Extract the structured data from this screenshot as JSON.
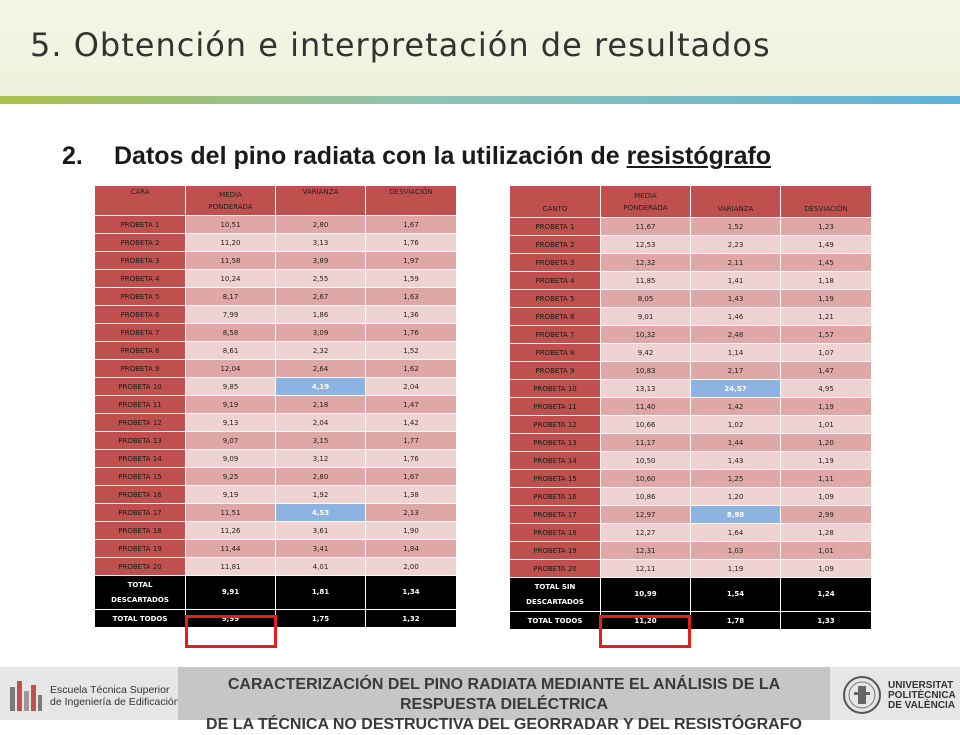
{
  "header": {
    "title": "5. Obtención e interpretación de resultados"
  },
  "subtitle": {
    "number": "2.",
    "text": "Datos del pino radiata con la utilización de ",
    "underlined": "resistógrafo"
  },
  "left_table": {
    "col1": "CARA",
    "col2a": "MEDIA",
    "col2b": "PONDERADA",
    "col3": "VARIANZA",
    "col4": "DESVIACIÓN",
    "rows": [
      [
        "PROBETA  1",
        "10,51",
        "2,80",
        "1,67"
      ],
      [
        "PROBETA  2",
        "11,20",
        "3,13",
        "1,76"
      ],
      [
        "PROBETA  3",
        "11,58",
        "3,89",
        "1,97"
      ],
      [
        "PROBETA  4",
        "10,24",
        "2,55",
        "1,59"
      ],
      [
        "PROBETA  5",
        "8,17",
        "2,67",
        "1,63"
      ],
      [
        "PROBETA  6",
        "7,99",
        "1,86",
        "1,36"
      ],
      [
        "PROBETA  7",
        "8,58",
        "3,09",
        "1,76"
      ],
      [
        "PROBETA  8",
        "8,61",
        "2,32",
        "1,52"
      ],
      [
        "PROBETA  9",
        "12,04",
        "2,64",
        "1,62"
      ],
      [
        "PROBETA  10",
        "9,85",
        "4,19",
        "2,04"
      ],
      [
        "PROBETA  11",
        "9,19",
        "2,18",
        "1,47"
      ],
      [
        "PROBETA  12",
        "9,13",
        "2,04",
        "1,42"
      ],
      [
        "PROBETA  13",
        "9,07",
        "3,15",
        "1,77"
      ],
      [
        "PROBETA  14",
        "9,09",
        "3,12",
        "1,76"
      ],
      [
        "PROBETA  15",
        "9,25",
        "2,80",
        "1,67"
      ],
      [
        "PROBETA  16",
        "9,19",
        "1,92",
        "1,38"
      ],
      [
        "PROBETA  17",
        "11,51",
        "4,53",
        "2,13"
      ],
      [
        "PROBETA  18",
        "11,26",
        "3,61",
        "1,90"
      ],
      [
        "PROBETA  19",
        "11,44",
        "3,41",
        "1,84"
      ],
      [
        "PROBETA  20",
        "11,81",
        "4,01",
        "2,00"
      ]
    ],
    "highlighted": [
      "4,19",
      "4,53"
    ],
    "total1": {
      "label_a": "TOTAL",
      "label_b": "DESCARTADOS",
      "values": [
        "9,91",
        "1,81",
        "1,34"
      ]
    },
    "total2": {
      "label": "TOTAL  TODOS",
      "values": [
        "9,99",
        "1,75",
        "1,32"
      ]
    }
  },
  "right_table": {
    "col1": "CANTO",
    "col2a": "MEDIA",
    "col2b": "PONDERADA",
    "col3": "VARIANZA",
    "col4": "DESVIACIÓN",
    "rows": [
      [
        "PROBETA  1",
        "11,67",
        "1,52",
        "1,23"
      ],
      [
        "PROBETA  2",
        "12,53",
        "2,23",
        "1,49"
      ],
      [
        "PROBETA  3",
        "12,32",
        "2,11",
        "1,45"
      ],
      [
        "PROBETA  4",
        "11,85",
        "1,41",
        "1,18"
      ],
      [
        "PROBETA  5",
        "8,05",
        "1,43",
        "1,19"
      ],
      [
        "PROBETA  6",
        "9,01",
        "1,46",
        "1,21"
      ],
      [
        "PROBETA  7",
        "10,32",
        "2,48",
        "1,57"
      ],
      [
        "PROBETA  8",
        "9,42",
        "1,14",
        "1,07"
      ],
      [
        "PROBETA  9",
        "10,83",
        "2,17",
        "1,47"
      ],
      [
        "PROBETA  10",
        "13,13",
        "24,57",
        "4,95"
      ],
      [
        "PROBETA  11",
        "11,40",
        "1,42",
        "1,19"
      ],
      [
        "PROBETA  12",
        "10,66",
        "1,02",
        "1,01"
      ],
      [
        "PROBETA  13",
        "11,17",
        "1,44",
        "1,20"
      ],
      [
        "PROBETA  14",
        "10,50",
        "1,43",
        "1,19"
      ],
      [
        "PROBETA  15",
        "10,60",
        "1,25",
        "1,11"
      ],
      [
        "PROBETA  16",
        "10,86",
        "1,20",
        "1,09"
      ],
      [
        "PROBETA  17",
        "12,97",
        "8,98",
        "2,99"
      ],
      [
        "PROBETA  18",
        "12,27",
        "1,64",
        "1,28"
      ],
      [
        "PROBETA  19",
        "12,31",
        "1,03",
        "1,01"
      ],
      [
        "PROBETA  20",
        "12,11",
        "1,19",
        "1,09"
      ]
    ],
    "highlighted": [
      "24,57",
      "8,98"
    ],
    "total1": {
      "label_a": "TOTAL  SIN",
      "label_b": "DESCARTADOS",
      "values": [
        "10,99",
        "1,54",
        "1,24"
      ]
    },
    "total2": {
      "label": "TOTAL  TODOS",
      "values": [
        "11,20",
        "1,78",
        "1,33"
      ]
    }
  },
  "footer": {
    "school_line1": "Escuela Técnica Superior",
    "school_line2": "de Ingeniería de Edificación",
    "banner_line1": "CARACTERIZACIÓN DEL PINO RADIATA MEDIANTE EL ANÁLISIS DE LA RESPUESTA DIELÉCTRICA",
    "banner_line2": "DE LA TÉCNICA NO DESTRUCTIVA DEL GEORRADAR Y DEL RESISTÓGRAFO",
    "univ_line1": "UNIVERSITAT",
    "univ_line2": "POLITÈCNICA",
    "univ_line3": "DE VALÈNCIA"
  },
  "colors": {
    "header_red": "#c0504d",
    "row_dark": "#dfa7a6",
    "row_light": "#efd3d2",
    "highlight_blue": "#8db3e2",
    "box_red": "#e31e1e"
  }
}
